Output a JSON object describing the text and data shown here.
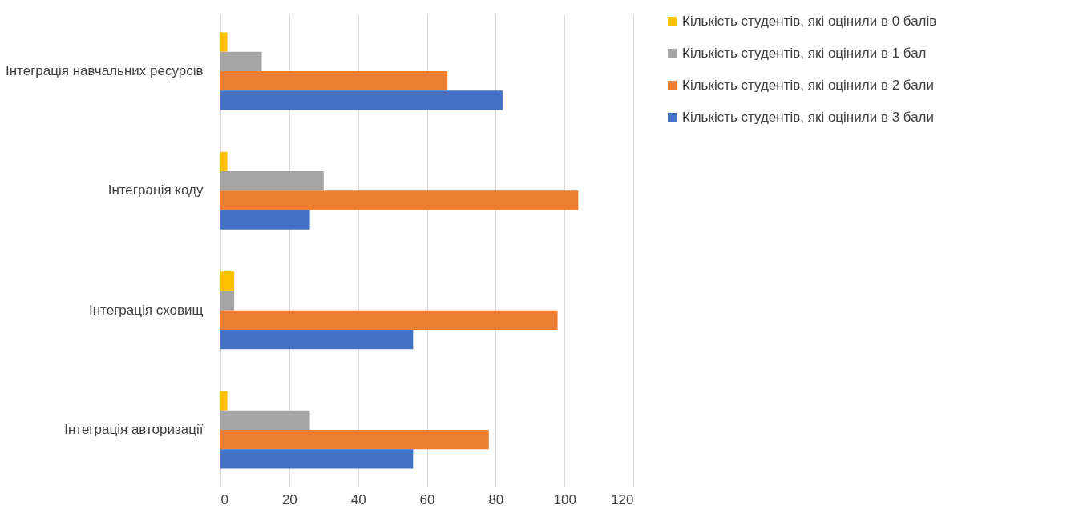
{
  "chart_data": {
    "type": "bar",
    "orientation": "horizontal",
    "categories": [
      "Інтеграція навчальних ресурсів",
      "Інтеграція коду",
      "Інтеграція сховищ",
      "Інтеграція авторизації"
    ],
    "series": [
      {
        "name": "Кількість студентів, які оцінили в 0 балів",
        "color": "#ffc000",
        "values": [
          2,
          2,
          4,
          2
        ]
      },
      {
        "name": "Кількість студентів, які оцінили в 1 бал",
        "color": "#a5a5a5",
        "values": [
          12,
          30,
          4,
          26
        ]
      },
      {
        "name": "Кількість студентів, які оцінили в 2 бали",
        "color": "#ed7d31",
        "values": [
          66,
          104,
          98,
          78
        ]
      },
      {
        "name": "Кількість студентів, які оцінили в 3 бали",
        "color": "#4472c4",
        "values": [
          82,
          26,
          56,
          56
        ]
      }
    ],
    "xlim": [
      0,
      120
    ],
    "xticks": [
      0,
      20,
      40,
      60,
      80,
      100,
      120
    ],
    "grid": "x",
    "legend": "right"
  }
}
